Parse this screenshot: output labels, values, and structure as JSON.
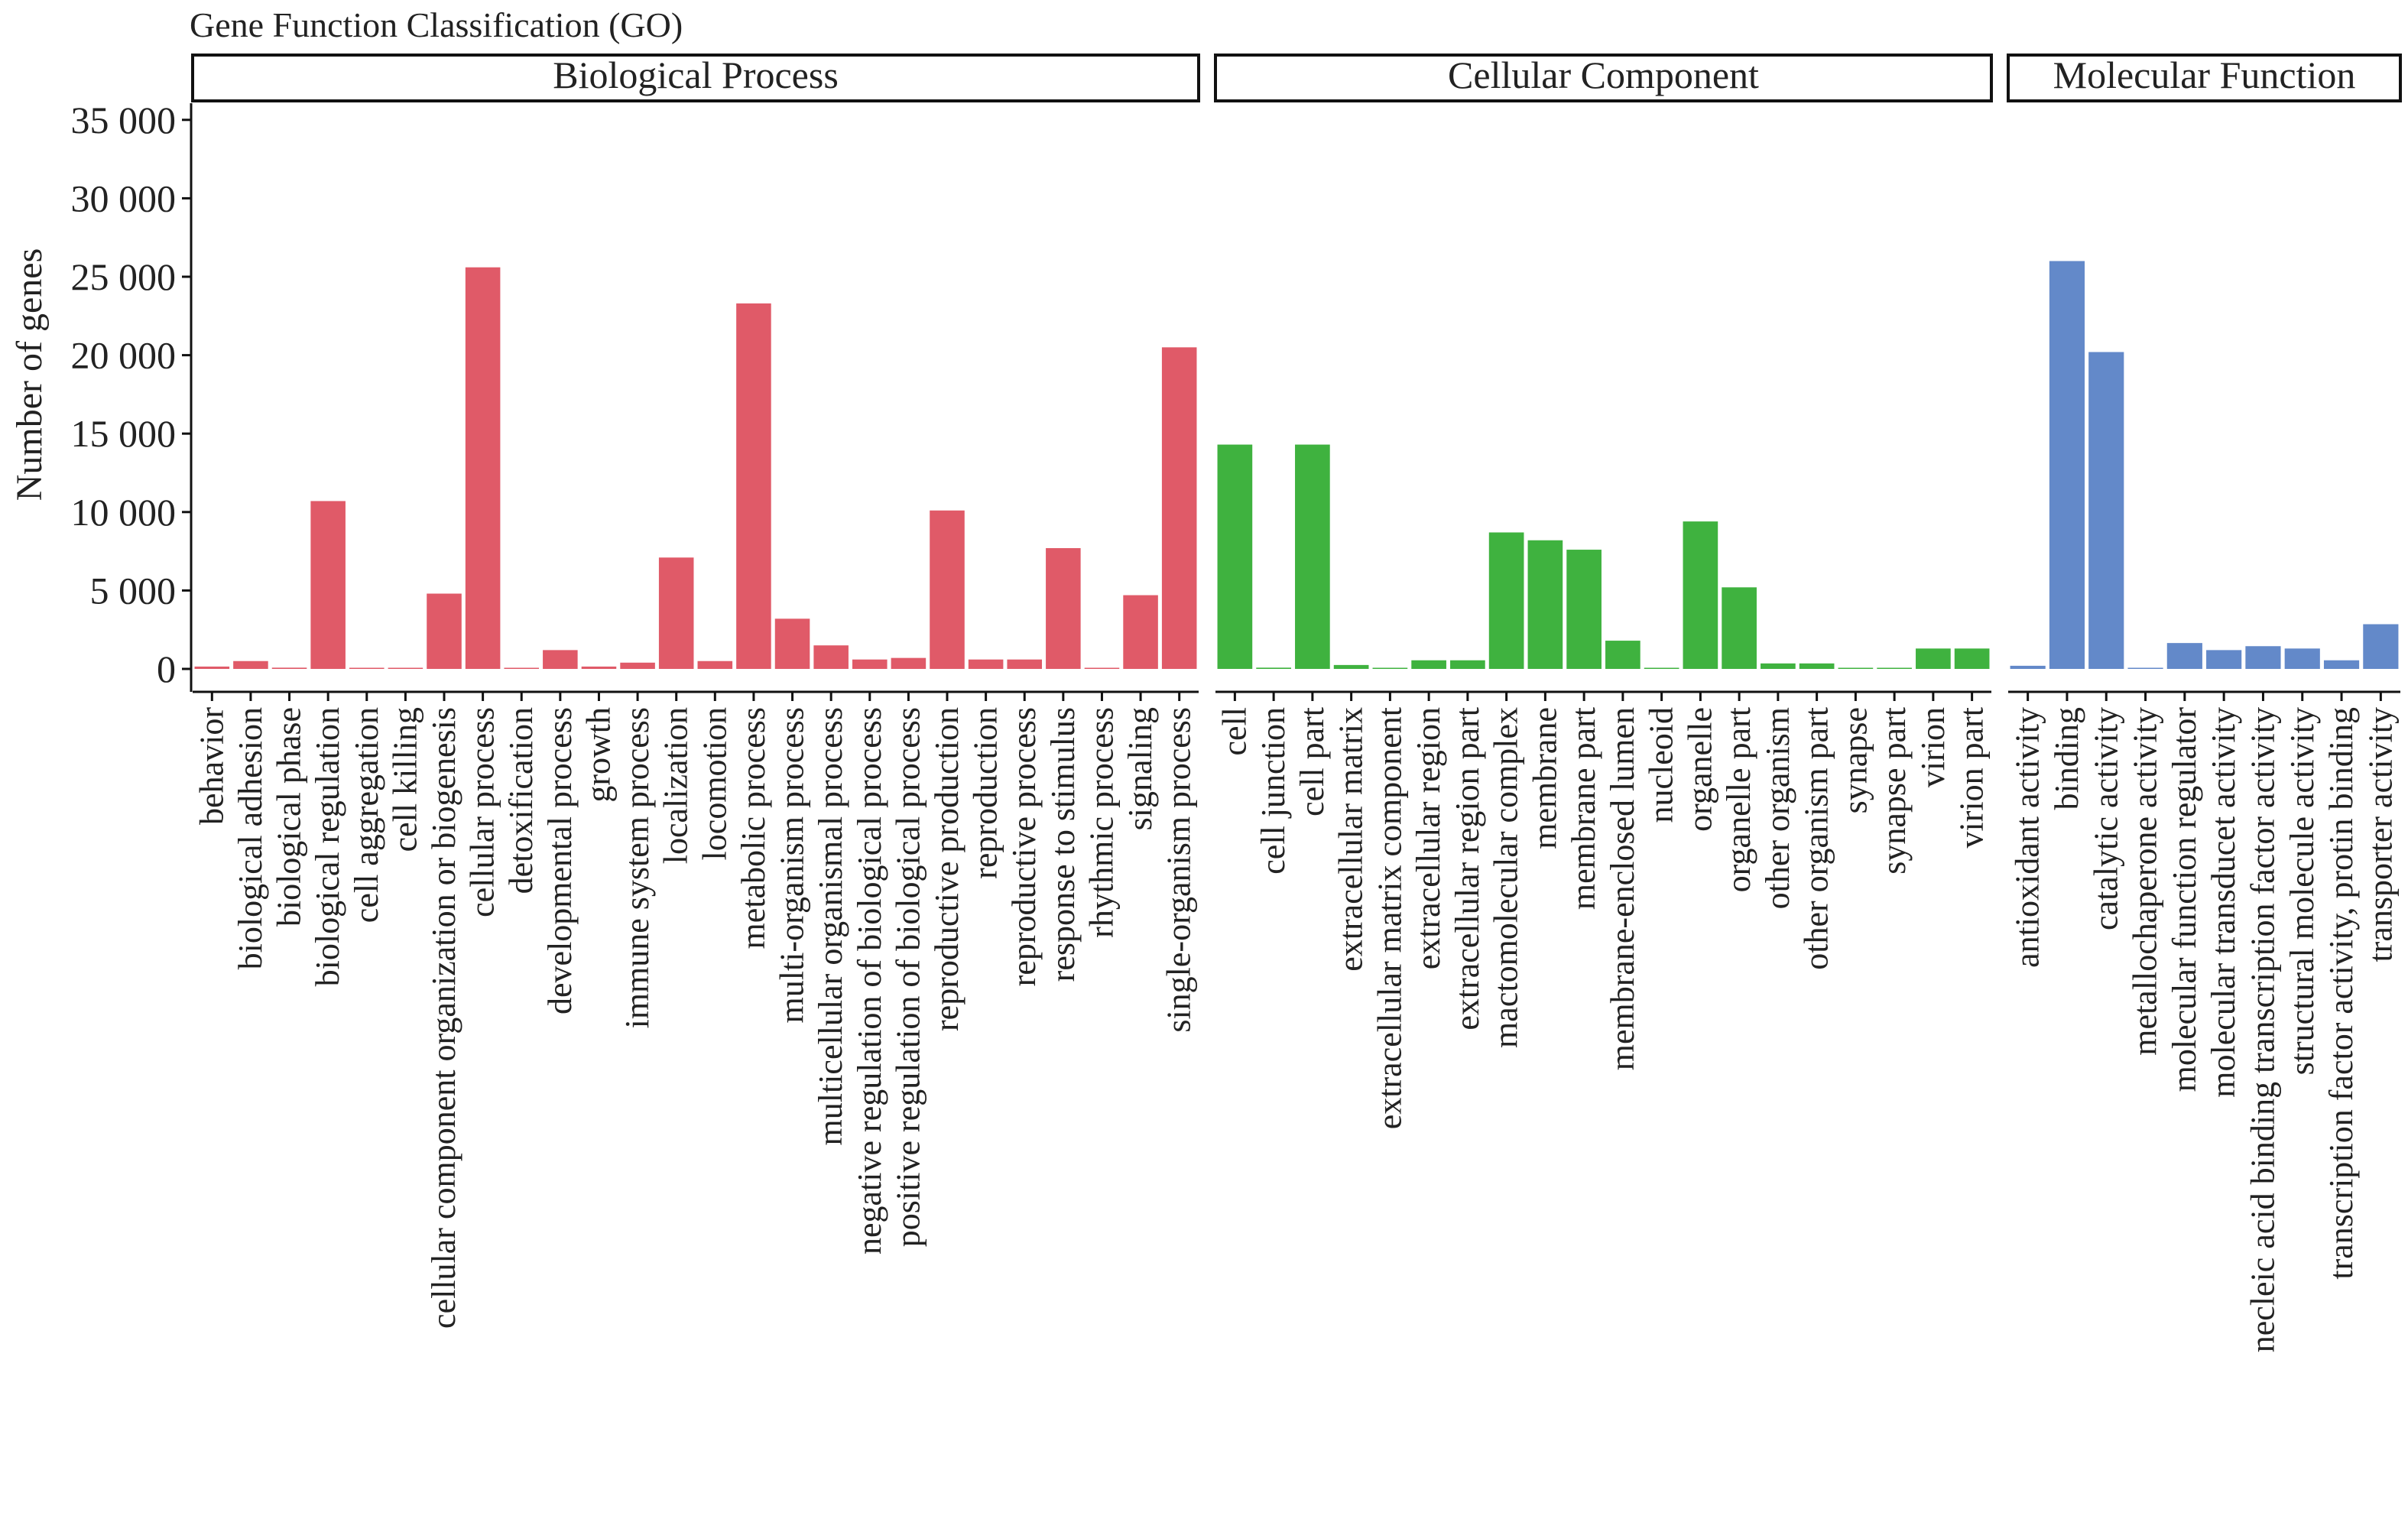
{
  "chart_data": {
    "type": "bar",
    "title": "Gene Function Classification (GO)",
    "ylabel": "Number of genes",
    "ylim": [
      0,
      37000
    ],
    "yticks": [
      0,
      5000,
      10000,
      15000,
      20000,
      25000,
      30000,
      35000
    ],
    "ytick_labels": [
      "0",
      "5 000",
      "10 000",
      "15 000",
      "20 000",
      "25 000",
      "30 000",
      "35 000"
    ],
    "panels": [
      {
        "name": "Biological Process",
        "color": "#E05A68",
        "categories": [
          "behavior",
          "biological adhesion",
          "biological phase",
          "biological regulation",
          "cell aggregation",
          "cell killing",
          "cellular component organization or biogenesis",
          "cellular process",
          "detoxification",
          "developmental process",
          "growth",
          "immune system process",
          "localization",
          "locomotion",
          "metabolic process",
          "multi-organism process",
          "multicellular organismal process",
          "negative regulation of biological process",
          "positive regulation of biological process",
          "reproductive production",
          "reproduction",
          "reproductive process",
          "response to stimulus",
          "rhythmic process",
          "signaling",
          "single-organism process"
        ],
        "values": [
          150,
          500,
          80,
          10700,
          20,
          60,
          4800,
          25600,
          50,
          1200,
          150,
          400,
          7100,
          500,
          23300,
          3200,
          1500,
          600,
          700,
          10100,
          600,
          600,
          7700,
          30,
          4700,
          20500
        ]
      },
      {
        "name": "Cellular Component",
        "color": "#3FB23F",
        "categories": [
          "cell",
          "cell junction",
          "cell part",
          "extracellular matrix",
          "extracellular matrix component",
          "extracellular region",
          "extracellular region part",
          "mactomolecular complex",
          "membrane",
          "membrane part",
          "membrane-enclosed lumen",
          "nucleoid",
          "organelle",
          "organelle part",
          "other organism",
          "other organism part",
          "synapse",
          "synapse part",
          "virion",
          "virion part"
        ],
        "values": [
          14300,
          80,
          14300,
          250,
          15,
          550,
          550,
          8700,
          8200,
          7600,
          1800,
          15,
          9400,
          5200,
          350,
          350,
          30,
          30,
          1300,
          1300
        ]
      },
      {
        "name": "Molecular Function",
        "color": "#6389C9",
        "categories": [
          "antioxidant activity",
          "binding",
          "catalytic activity",
          "metallochaperone activity",
          "molecular function regulator",
          "molecular transducet activity",
          "necleic acid binding transcription factor activity",
          "structural molecule activity",
          "transcription factor activity, protin binding",
          "transporter activity"
        ],
        "values": [
          200,
          26000,
          20200,
          30,
          1650,
          1200,
          1450,
          1300,
          550,
          2850
        ]
      }
    ]
  }
}
